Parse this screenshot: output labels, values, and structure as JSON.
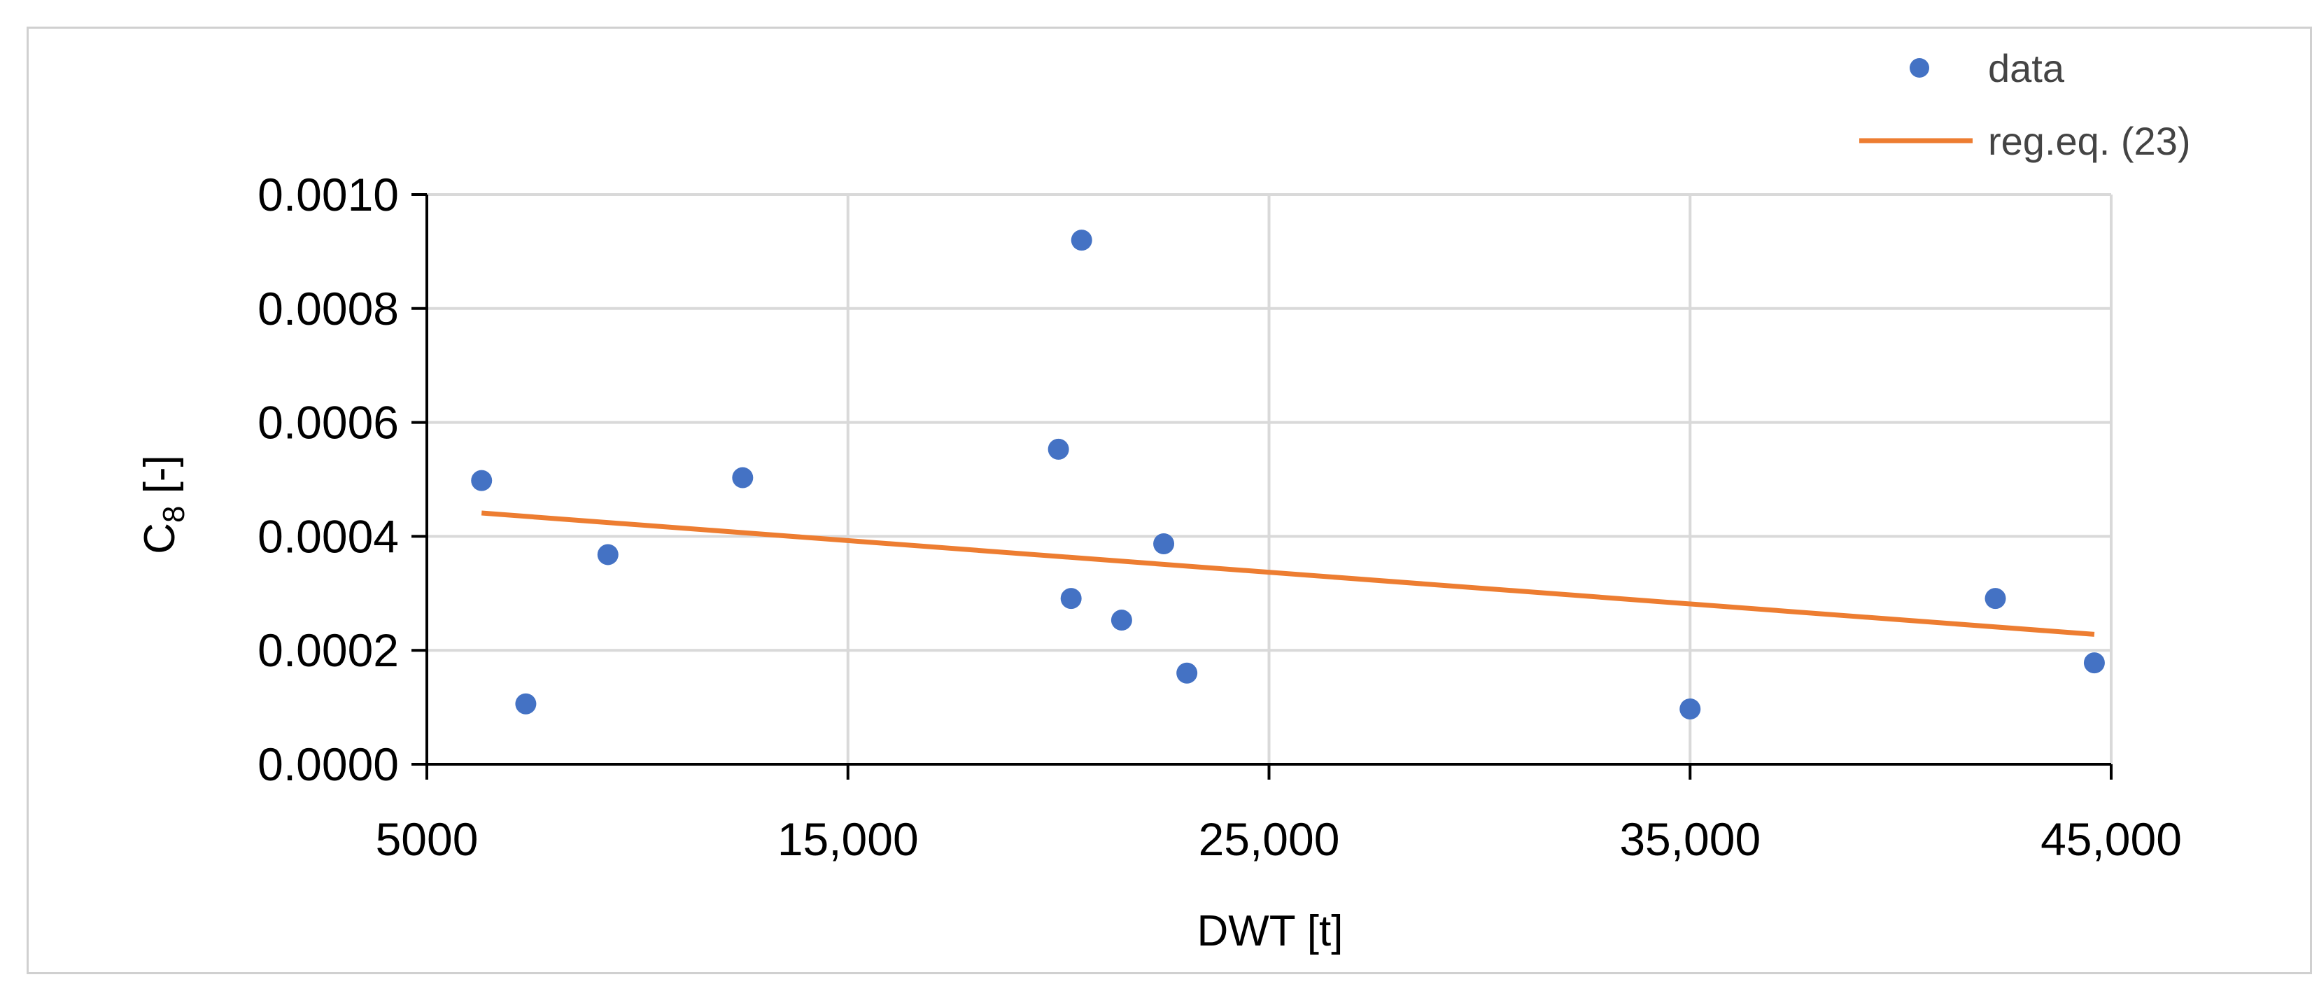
{
  "chart_data": {
    "type": "scatter",
    "title": "",
    "xlabel": "DWT [t]",
    "ylabel_main": "C",
    "ylabel_sub": "8",
    "ylabel_suffix": " [-]",
    "xlim": [
      5000,
      45000
    ],
    "ylim": [
      0,
      0.001
    ],
    "xticks": [
      5000,
      15000,
      25000,
      35000,
      45000
    ],
    "xtick_labels": [
      "5000",
      "15,000",
      "25,000",
      "35,000",
      "45,000"
    ],
    "yticks": [
      0,
      0.0002,
      0.0004,
      0.0006,
      0.0008,
      0.001
    ],
    "ytick_labels": [
      "0.0000",
      "0.0002",
      "0.0004",
      "0.0006",
      "0.0008",
      "0.0010"
    ],
    "grid": true,
    "legend_position": "top-right",
    "colors": {
      "data": "#4472C4",
      "regression": "#ED7D31",
      "grid": "#d9d9d9"
    },
    "series": [
      {
        "name": "data",
        "kind": "scatter",
        "points": [
          [
            6300,
            0.000498
          ],
          [
            7350,
            0.000106
          ],
          [
            9300,
            0.000368
          ],
          [
            12500,
            0.000503
          ],
          [
            20000,
            0.000553
          ],
          [
            20300,
            0.000291
          ],
          [
            20550,
            0.00092
          ],
          [
            21500,
            0.000253
          ],
          [
            22500,
            0.000387
          ],
          [
            23050,
            0.00016
          ],
          [
            35000,
            9.7e-05
          ],
          [
            42250,
            0.000291
          ],
          [
            44600,
            0.000178
          ]
        ]
      },
      {
        "name": "reg.eq. (23)",
        "kind": "line",
        "points": [
          [
            6300,
            0.000441
          ],
          [
            44600,
            0.000228
          ]
        ]
      }
    ]
  }
}
